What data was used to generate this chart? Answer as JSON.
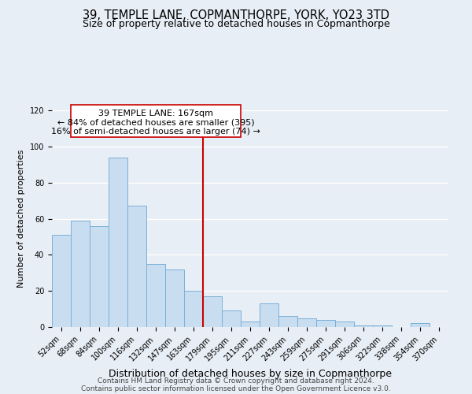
{
  "title": "39, TEMPLE LANE, COPMANTHORPE, YORK, YO23 3TD",
  "subtitle": "Size of property relative to detached houses in Copmanthorpe",
  "xlabel": "Distribution of detached houses by size in Copmanthorpe",
  "ylabel": "Number of detached properties",
  "bin_labels": [
    "52sqm",
    "68sqm",
    "84sqm",
    "100sqm",
    "116sqm",
    "132sqm",
    "147sqm",
    "163sqm",
    "179sqm",
    "195sqm",
    "211sqm",
    "227sqm",
    "243sqm",
    "259sqm",
    "275sqm",
    "291sqm",
    "306sqm",
    "322sqm",
    "338sqm",
    "354sqm",
    "370sqm"
  ],
  "bar_heights": [
    51,
    59,
    56,
    94,
    67,
    35,
    32,
    20,
    17,
    9,
    3,
    13,
    6,
    5,
    4,
    3,
    1,
    1,
    0,
    2,
    0
  ],
  "bar_color": "#c9ddf0",
  "bar_edge_color": "#7ab0d8",
  "background_color": "#e8eef5",
  "grid_color": "#ffffff",
  "vline_color": "#cc0000",
  "annotation_title": "39 TEMPLE LANE: 167sqm",
  "annotation_line1": "← 84% of detached houses are smaller (395)",
  "annotation_line2": "16% of semi-detached houses are larger (74) →",
  "annotation_box_color": "#ffffff",
  "annotation_box_edge": "#cc0000",
  "ylim": [
    0,
    120
  ],
  "yticks": [
    0,
    20,
    40,
    60,
    80,
    100,
    120
  ],
  "footer1": "Contains HM Land Registry data © Crown copyright and database right 2024.",
  "footer2": "Contains public sector information licensed under the Open Government Licence v3.0.",
  "title_fontsize": 10.5,
  "subtitle_fontsize": 9,
  "xlabel_fontsize": 9,
  "ylabel_fontsize": 8,
  "tick_fontsize": 7,
  "footer_fontsize": 6.5,
  "ann_fontsize": 8
}
